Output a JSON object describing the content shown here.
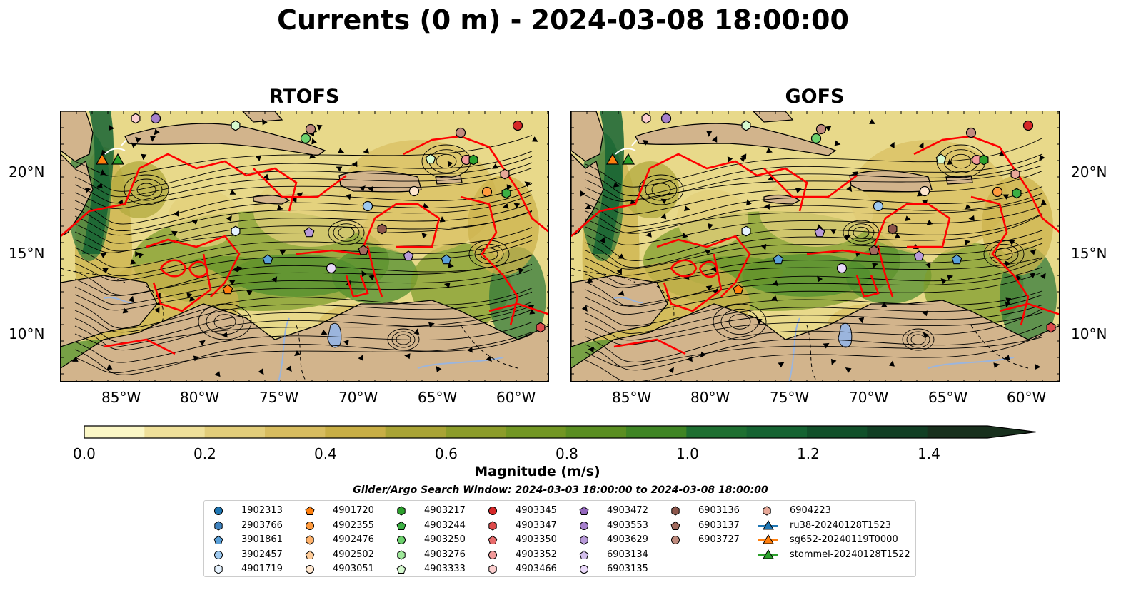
{
  "title": "Currents (0 m) - 2024-03-08 18:00:00",
  "panels": [
    {
      "name": "RTOFS"
    },
    {
      "name": "GOFS"
    }
  ],
  "axes": {
    "lon_ticks": [
      "85°W",
      "80°W",
      "75°W",
      "70°W",
      "65°W",
      "60°W"
    ],
    "lat_ticks": [
      "20°N",
      "15°N",
      "10°N"
    ]
  },
  "colorbar": {
    "label": "Magnitude (m/s)",
    "ticks": [
      "0.0",
      "0.2",
      "0.4",
      "0.6",
      "0.8",
      "1.0",
      "1.2",
      "1.4"
    ],
    "range": [
      0,
      1.5
    ],
    "extend": "max",
    "colors": [
      "#fbf7c6",
      "#efe09a",
      "#e2cd7a",
      "#d7bc5f",
      "#c8ae45",
      "#a9a335",
      "#8c9c2a",
      "#729623",
      "#5a8e21",
      "#3f8524",
      "#1e6f31",
      "#156332",
      "#11502a",
      "#113f24",
      "#18301d"
    ]
  },
  "search_window": "Glider/Argo Search Window: 2024-03-03 18:00:00 to 2024-03-08 18:00:00",
  "legend": {
    "items": [
      {
        "label": "1902313",
        "marker": "circle",
        "color": "#1f77b4"
      },
      {
        "label": "2903766",
        "marker": "hexagon",
        "color": "#3f83c0"
      },
      {
        "label": "3901861",
        "marker": "pentagon",
        "color": "#5aa0d8"
      },
      {
        "label": "3902457",
        "marker": "circle",
        "color": "#9ec9ef"
      },
      {
        "label": "4901719",
        "marker": "hexagon",
        "color": "#e6f3ff"
      },
      {
        "label": "4901720",
        "marker": "pentagon",
        "color": "#ff7f0e"
      },
      {
        "label": "4902355",
        "marker": "circle",
        "color": "#ff9b3e"
      },
      {
        "label": "4902476",
        "marker": "hexagon",
        "color": "#ffb26b"
      },
      {
        "label": "4902502",
        "marker": "pentagon",
        "color": "#ffcc98"
      },
      {
        "label": "4903051",
        "marker": "circle",
        "color": "#ffe7cf"
      },
      {
        "label": "4903217",
        "marker": "hexagon",
        "color": "#2ca02c"
      },
      {
        "label": "4903244",
        "marker": "pentagon",
        "color": "#3cb043"
      },
      {
        "label": "4903250",
        "marker": "circle",
        "color": "#6dd16d"
      },
      {
        "label": "4903276",
        "marker": "hexagon",
        "color": "#9fe89a"
      },
      {
        "label": "4903333",
        "marker": "pentagon",
        "color": "#d6f9cf"
      },
      {
        "label": "4903345",
        "marker": "circle",
        "color": "#d62728"
      },
      {
        "label": "4903347",
        "marker": "hexagon",
        "color": "#dd4b4b"
      },
      {
        "label": "4903350",
        "marker": "pentagon",
        "color": "#e86b6b"
      },
      {
        "label": "4903352",
        "marker": "circle",
        "color": "#f29a9a"
      },
      {
        "label": "4903466",
        "marker": "hexagon",
        "color": "#fccfcf"
      },
      {
        "label": "4903472",
        "marker": "pentagon",
        "color": "#9467bd"
      },
      {
        "label": "4903553",
        "marker": "circle",
        "color": "#a67fcc"
      },
      {
        "label": "4903629",
        "marker": "hexagon",
        "color": "#b89ad9"
      },
      {
        "label": "6903134",
        "marker": "pentagon",
        "color": "#d2bdeb"
      },
      {
        "label": "6903135",
        "marker": "circle",
        "color": "#ead9fa"
      },
      {
        "label": "6903136",
        "marker": "hexagon",
        "color": "#8c564b"
      },
      {
        "label": "6903137",
        "marker": "pentagon",
        "color": "#a26b5e"
      },
      {
        "label": "6903727",
        "marker": "circle",
        "color": "#c08b7e"
      },
      {
        "label": "6904223",
        "marker": "hexagon",
        "color": "#e6a898"
      },
      {
        "label": "ru38-20240128T1523",
        "marker": "triangle-line",
        "color": "#1f77b4"
      },
      {
        "label": "sg652-20240119T0000",
        "marker": "triangle-line",
        "color": "#ff7f0e"
      },
      {
        "label": "stommel-20240128T1522",
        "marker": "triangle-line",
        "color": "#2ca02c"
      }
    ]
  }
}
